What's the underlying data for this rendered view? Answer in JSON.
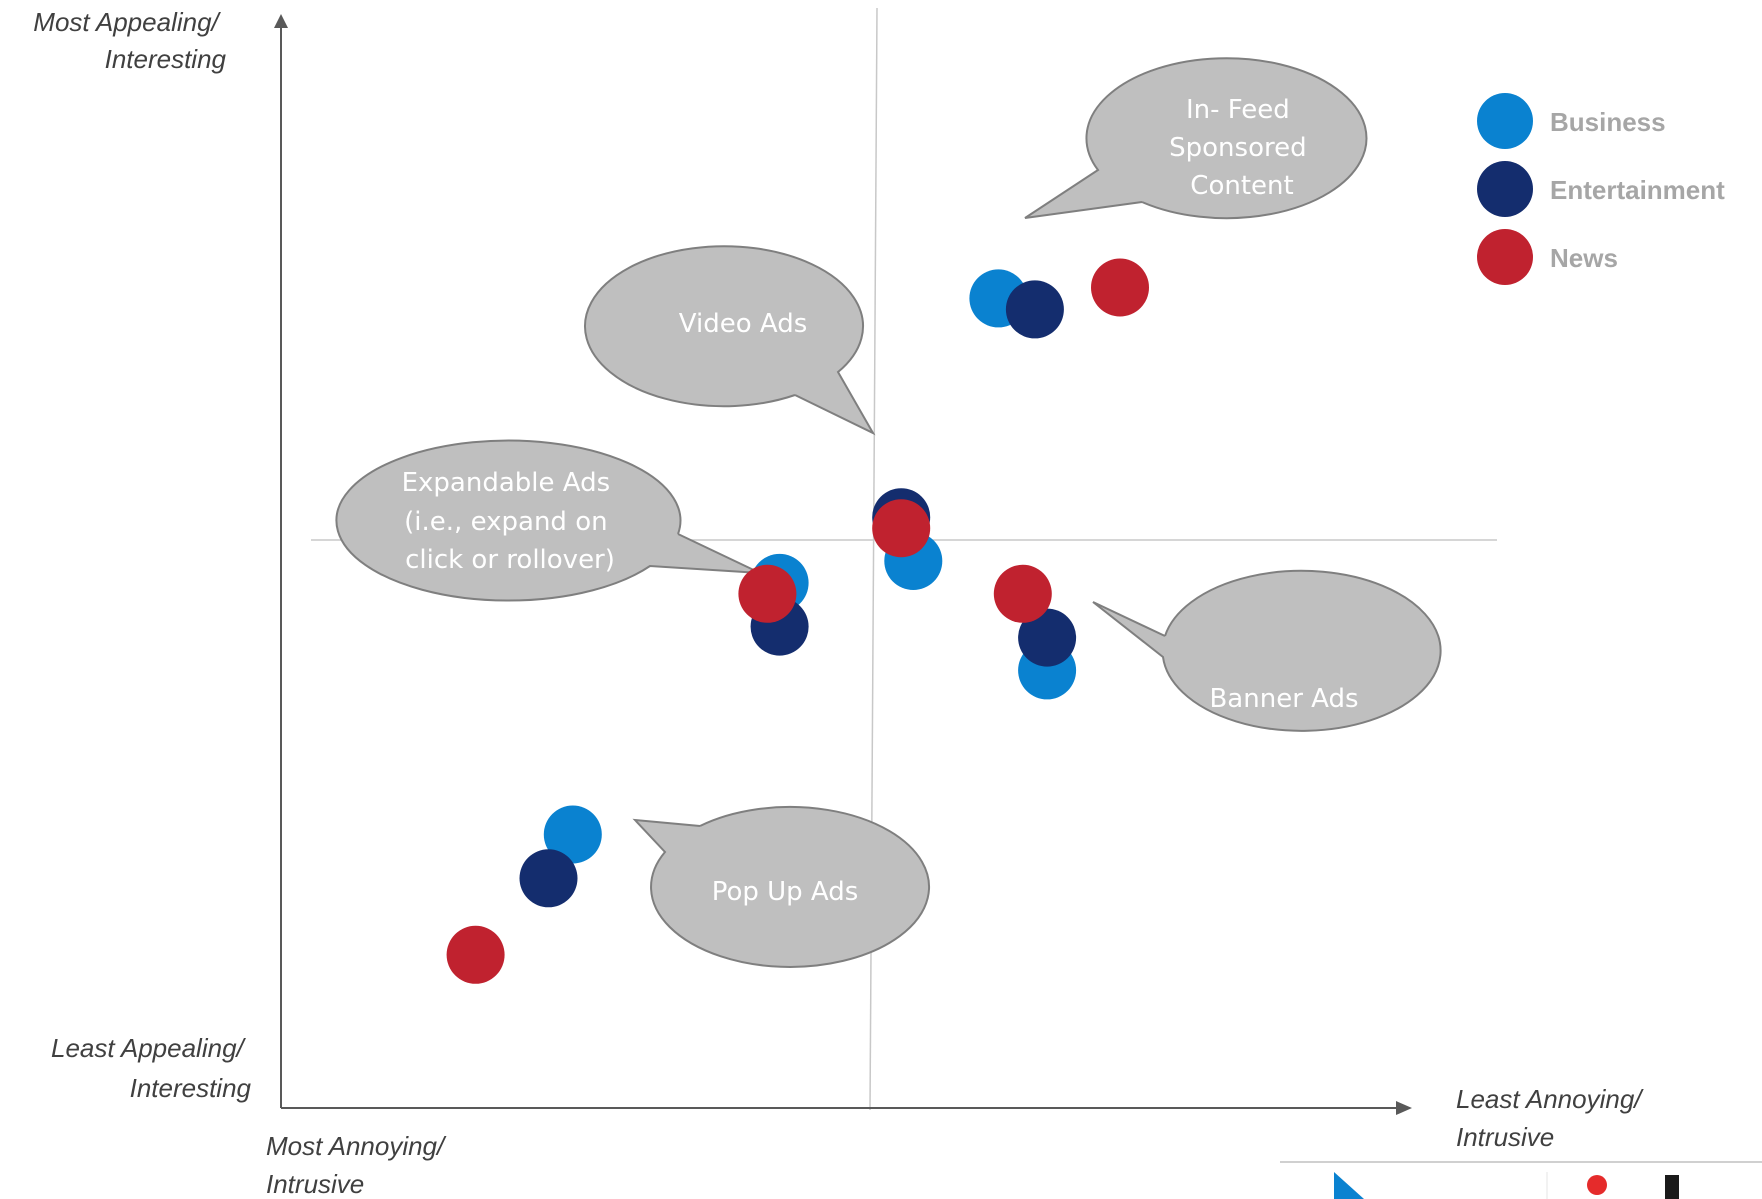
{
  "chart_data": {
    "type": "scatter",
    "title": "",
    "y_axis": {
      "top_label": [
        "Most Appealing/",
        "Interesting"
      ],
      "bottom_label": [
        "Least Appealing/",
        "Interesting"
      ]
    },
    "x_axis": {
      "left_label": [
        "Most Annoying/",
        "Intrusive"
      ],
      "right_label": [
        "Least Annoying/",
        "Intrusive"
      ]
    },
    "xlim": [
      0,
      100
    ],
    "ylim": [
      0,
      100
    ],
    "grid": false,
    "legend_position": "top-right",
    "quadrant_lines": {
      "x": 50,
      "y": 50
    },
    "series": [
      {
        "name": "Business",
        "color": "#0a82d0",
        "points": [
          {
            "label": "Pop Up Ads",
            "x": 24,
            "y": 25
          },
          {
            "label": "Expandable Ads",
            "x": 41,
            "y": 48
          },
          {
            "label": "Video Ads",
            "x": 52,
            "y": 50
          },
          {
            "label": "Banner Ads",
            "x": 63,
            "y": 40
          },
          {
            "label": "In- Feed Sponsored Content",
            "x": 59,
            "y": 74
          }
        ]
      },
      {
        "name": "Entertainment",
        "color": "#142d6e",
        "points": [
          {
            "label": "Pop Up Ads",
            "x": 22,
            "y": 21
          },
          {
            "label": "Expandable Ads",
            "x": 41,
            "y": 44
          },
          {
            "label": "Video Ads",
            "x": 51,
            "y": 54
          },
          {
            "label": "Banner Ads",
            "x": 63,
            "y": 43
          },
          {
            "label": "In- Feed Sponsored Content",
            "x": 62,
            "y": 73
          }
        ]
      },
      {
        "name": "News",
        "color": "#c0222f",
        "points": [
          {
            "label": "Pop Up Ads",
            "x": 16,
            "y": 14
          },
          {
            "label": "Expandable Ads",
            "x": 40,
            "y": 47
          },
          {
            "label": "Video Ads",
            "x": 51,
            "y": 53
          },
          {
            "label": "Banner Ads",
            "x": 61,
            "y": 47
          },
          {
            "label": "In- Feed Sponsored Content",
            "x": 69,
            "y": 75
          }
        ]
      }
    ],
    "annotations": [
      {
        "lines": [
          "In- Feed",
          "Sponsored",
          "Content"
        ]
      },
      {
        "lines": [
          "Video Ads"
        ]
      },
      {
        "lines": [
          "Expandable Ads",
          "(i.e., expand on",
          "click or rollover)"
        ]
      },
      {
        "lines": [
          "Banner Ads"
        ]
      },
      {
        "lines": [
          "Pop Up Ads"
        ]
      }
    ]
  },
  "colors": {
    "axis": "#595959",
    "quadrant_line": "#c8c8c8",
    "bubble_fill": "#bfbfbf",
    "bubble_stroke": "#7f7f7f"
  }
}
